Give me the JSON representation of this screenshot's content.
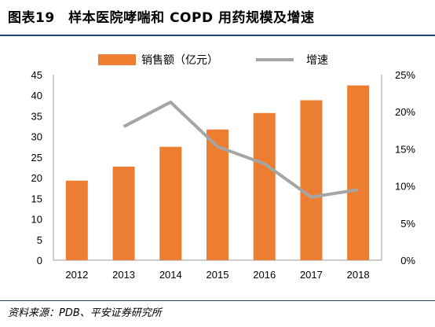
{
  "title": "图表19　样本医院哮喘和 COPD 用药规模及增速",
  "source": "资料来源：PDB、平安证券研究所",
  "chart_data": {
    "type": "bar+line",
    "categories": [
      "2012",
      "2013",
      "2014",
      "2015",
      "2016",
      "2017",
      "2018"
    ],
    "series": [
      {
        "name": "销售额（亿元）",
        "type": "bar",
        "axis": "left",
        "color": "#ED7D31",
        "values": [
          19.3,
          22.7,
          27.5,
          31.7,
          35.7,
          38.8,
          42.4
        ]
      },
      {
        "name": "增速",
        "type": "line",
        "axis": "right",
        "color": "#A5A5A5",
        "values": [
          null,
          0.18,
          0.213,
          0.153,
          0.13,
          0.085,
          0.095
        ]
      }
    ],
    "y_left": {
      "min": 0,
      "max": 45,
      "ticks": [
        "0",
        "5",
        "10",
        "15",
        "20",
        "25",
        "30",
        "35",
        "40",
        "45"
      ]
    },
    "y_right": {
      "min": 0,
      "max": 0.25,
      "ticks": [
        "0%",
        "5%",
        "10%",
        "15%",
        "20%",
        "25%"
      ]
    },
    "legend": "top",
    "grid": false
  }
}
